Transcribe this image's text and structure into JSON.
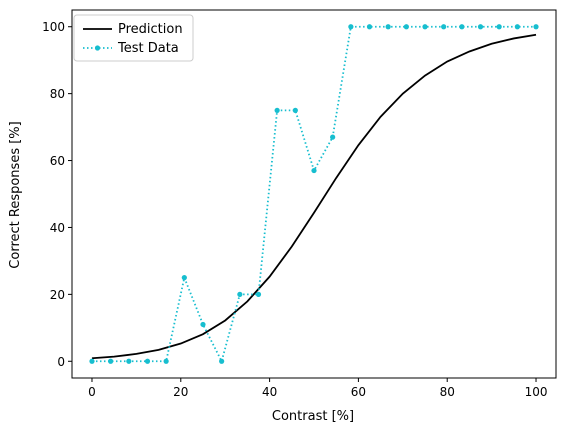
{
  "chart_data": {
    "type": "line",
    "title": "",
    "xlabel": "Contrast [%]",
    "ylabel": "Correct Responses [%]",
    "xlim": [
      -4.5,
      104.5
    ],
    "ylim": [
      -5,
      105
    ],
    "xticks": [
      0,
      20,
      40,
      60,
      80,
      100
    ],
    "yticks": [
      0,
      20,
      40,
      60,
      80,
      100
    ],
    "grid": false,
    "legend_position": "top-left",
    "series": [
      {
        "name": "Prediction",
        "style": "solid",
        "color": "#000000",
        "x": [
          0,
          5,
          10,
          15,
          20,
          25,
          30,
          35,
          40,
          45,
          50,
          55,
          60,
          65,
          70,
          75,
          80,
          85,
          90,
          95,
          100
        ],
        "y": [
          0.9,
          1.4,
          2.2,
          3.4,
          5.3,
          8.1,
          12.2,
          17.9,
          25.3,
          34.3,
          44.4,
          54.8,
          64.6,
          73.1,
          80.0,
          85.4,
          89.6,
          92.6,
          94.9,
          96.5,
          97.6
        ]
      },
      {
        "name": "Test Data",
        "style": "dotted",
        "marker": "circle",
        "color": "#17becf",
        "x": [
          0,
          4.2,
          8.3,
          12.5,
          16.7,
          20.8,
          25,
          29.2,
          33.3,
          37.5,
          41.7,
          45.8,
          50,
          54.2,
          58.3,
          62.5,
          66.7,
          70.8,
          75,
          79.2,
          83.3,
          87.5,
          91.7,
          95.8,
          100
        ],
        "y": [
          0,
          0,
          0,
          0,
          0,
          25,
          11,
          0,
          20,
          20,
          75,
          75,
          57,
          67,
          100,
          100,
          100,
          100,
          100,
          100,
          100,
          100,
          100,
          100,
          100
        ]
      }
    ]
  }
}
